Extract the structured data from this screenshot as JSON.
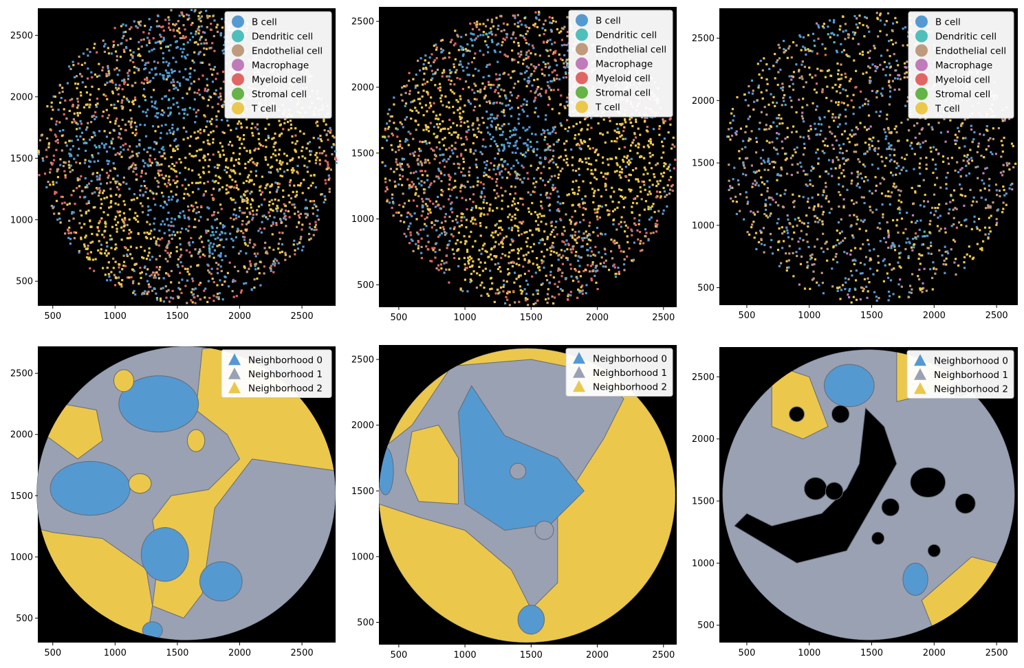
{
  "legend_markers": {
    "cells": "circle",
    "neighborhoods": "triangle"
  },
  "colors": {
    "background": "#000000",
    "B cell": "#5599d1",
    "Dendritic cell": "#4fbfbb",
    "Endothelial cell": "#bf9a7d",
    "Macrophage": "#bf7cb8",
    "Myeloid cell": "#e06666",
    "Stromal cell": "#66b347",
    "T cell": "#ebc74c",
    "Neighborhood 0": "#5599d1",
    "Neighborhood 1": "#99a1b3",
    "Neighborhood 2": "#ebc74c"
  },
  "chart_data": [
    {
      "type": "scatter",
      "title": "",
      "xlabel": "",
      "ylabel": "",
      "xlim": [
        380,
        2770
      ],
      "ylim": [
        300,
        2720
      ],
      "xticks": [
        500,
        1000,
        1500,
        2000,
        2500
      ],
      "yticks": [
        500,
        1000,
        1500,
        2000,
        2500
      ],
      "legend_position": "upper right",
      "legend": [
        "B cell",
        "Dendritic cell",
        "Endothelial cell",
        "Macrophage",
        "Myeloid cell",
        "Stromal cell",
        "T cell"
      ],
      "series": [
        {
          "name": "B cell",
          "clusters": [
            [
              1400,
              1800,
              280
            ],
            [
              1430,
              2280,
              240
            ],
            [
              800,
              1580,
              200
            ],
            [
              1400,
              1050,
              180
            ],
            [
              1850,
              840,
              150
            ],
            [
              2000,
              2450,
              200
            ]
          ]
        },
        {
          "name": "T cell",
          "clusters": [
            [
              2200,
              1500,
              450
            ],
            [
              1000,
              900,
              350
            ],
            [
              850,
              2000,
              150
            ],
            [
              1650,
              1500,
              300
            ]
          ]
        }
      ],
      "circle": {
        "cx": 1570,
        "cy": 1520,
        "r": 1200
      }
    },
    {
      "type": "scatter",
      "title": "",
      "xlabel": "",
      "ylabel": "",
      "xlim": [
        350,
        2600
      ],
      "ylim": [
        330,
        2610
      ],
      "xticks": [
        500,
        1000,
        1500,
        2000,
        2500
      ],
      "yticks": [
        500,
        1000,
        1500,
        2000,
        2500
      ],
      "legend_position": "upper right",
      "legend": [
        "B cell",
        "Dendritic cell",
        "Endothelial cell",
        "Macrophage",
        "Myeloid cell",
        "Stromal cell",
        "T cell"
      ],
      "series": [
        {
          "name": "B cell",
          "clusters": [
            [
              1400,
              1650,
              300
            ],
            [
              1100,
              2250,
              200
            ],
            [
              1500,
              550,
              80
            ]
          ]
        },
        {
          "name": "T cell",
          "clusters": [
            [
              2100,
              1400,
              450
            ],
            [
              800,
              1800,
              250
            ],
            [
              1300,
              800,
              400
            ]
          ]
        }
      ],
      "circle": {
        "cx": 1470,
        "cy": 1465,
        "r": 1120
      }
    },
    {
      "type": "scatter",
      "title": "",
      "xlabel": "",
      "ylabel": "",
      "xlim": [
        280,
        2670
      ],
      "ylim": [
        360,
        2740
      ],
      "xticks": [
        500,
        1000,
        1500,
        2000,
        2500
      ],
      "yticks": [
        500,
        1000,
        1500,
        2000,
        2500
      ],
      "legend_position": "upper right",
      "legend": [
        "B cell",
        "Dendritic cell",
        "Endothelial cell",
        "Macrophage",
        "Myeloid cell",
        "Stromal cell",
        "T cell"
      ],
      "series": [
        {
          "name": "B cell",
          "clusters": [
            [
              1100,
              2450,
              200
            ],
            [
              1850,
              950,
              150
            ]
          ]
        },
        {
          "name": "T cell",
          "clusters": [
            [
              1200,
              2200,
              250
            ],
            [
              2300,
              850,
              200
            ],
            [
              2300,
              2500,
              200
            ]
          ]
        }
      ],
      "circle": {
        "cx": 1475,
        "cy": 1550,
        "r": 1170
      }
    },
    {
      "type": "heatmap",
      "title": "",
      "xlabel": "",
      "ylabel": "",
      "xlim": [
        380,
        2770
      ],
      "ylim": [
        300,
        2720
      ],
      "xticks": [
        500,
        1000,
        1500,
        2000,
        2500
      ],
      "yticks": [
        500,
        1000,
        1500,
        2000,
        2500
      ],
      "legend_position": "upper right",
      "legend": [
        "Neighborhood 0",
        "Neighborhood 1",
        "Neighborhood 2"
      ],
      "circle": {
        "cx": 1570,
        "cy": 1520,
        "r": 1200
      }
    },
    {
      "type": "heatmap",
      "title": "",
      "xlabel": "",
      "ylabel": "",
      "xlim": [
        350,
        2600
      ],
      "ylim": [
        330,
        2610
      ],
      "xticks": [
        500,
        1000,
        1500,
        2000,
        2500
      ],
      "yticks": [
        500,
        1000,
        1500,
        2000,
        2500
      ],
      "legend_position": "upper right",
      "legend": [
        "Neighborhood 0",
        "Neighborhood 1",
        "Neighborhood 2"
      ],
      "circle": {
        "cx": 1470,
        "cy": 1465,
        "r": 1120
      }
    },
    {
      "type": "heatmap",
      "title": "",
      "xlabel": "",
      "ylabel": "",
      "xlim": [
        280,
        2670
      ],
      "ylim": [
        360,
        2740
      ],
      "xticks": [
        500,
        1000,
        1500,
        2000,
        2500
      ],
      "yticks": [
        500,
        1000,
        1500,
        2000,
        2500
      ],
      "legend_position": "upper right",
      "legend": [
        "Neighborhood 0",
        "Neighborhood 1",
        "Neighborhood 2"
      ],
      "circle": {
        "cx": 1475,
        "cy": 1550,
        "r": 1170
      }
    }
  ]
}
